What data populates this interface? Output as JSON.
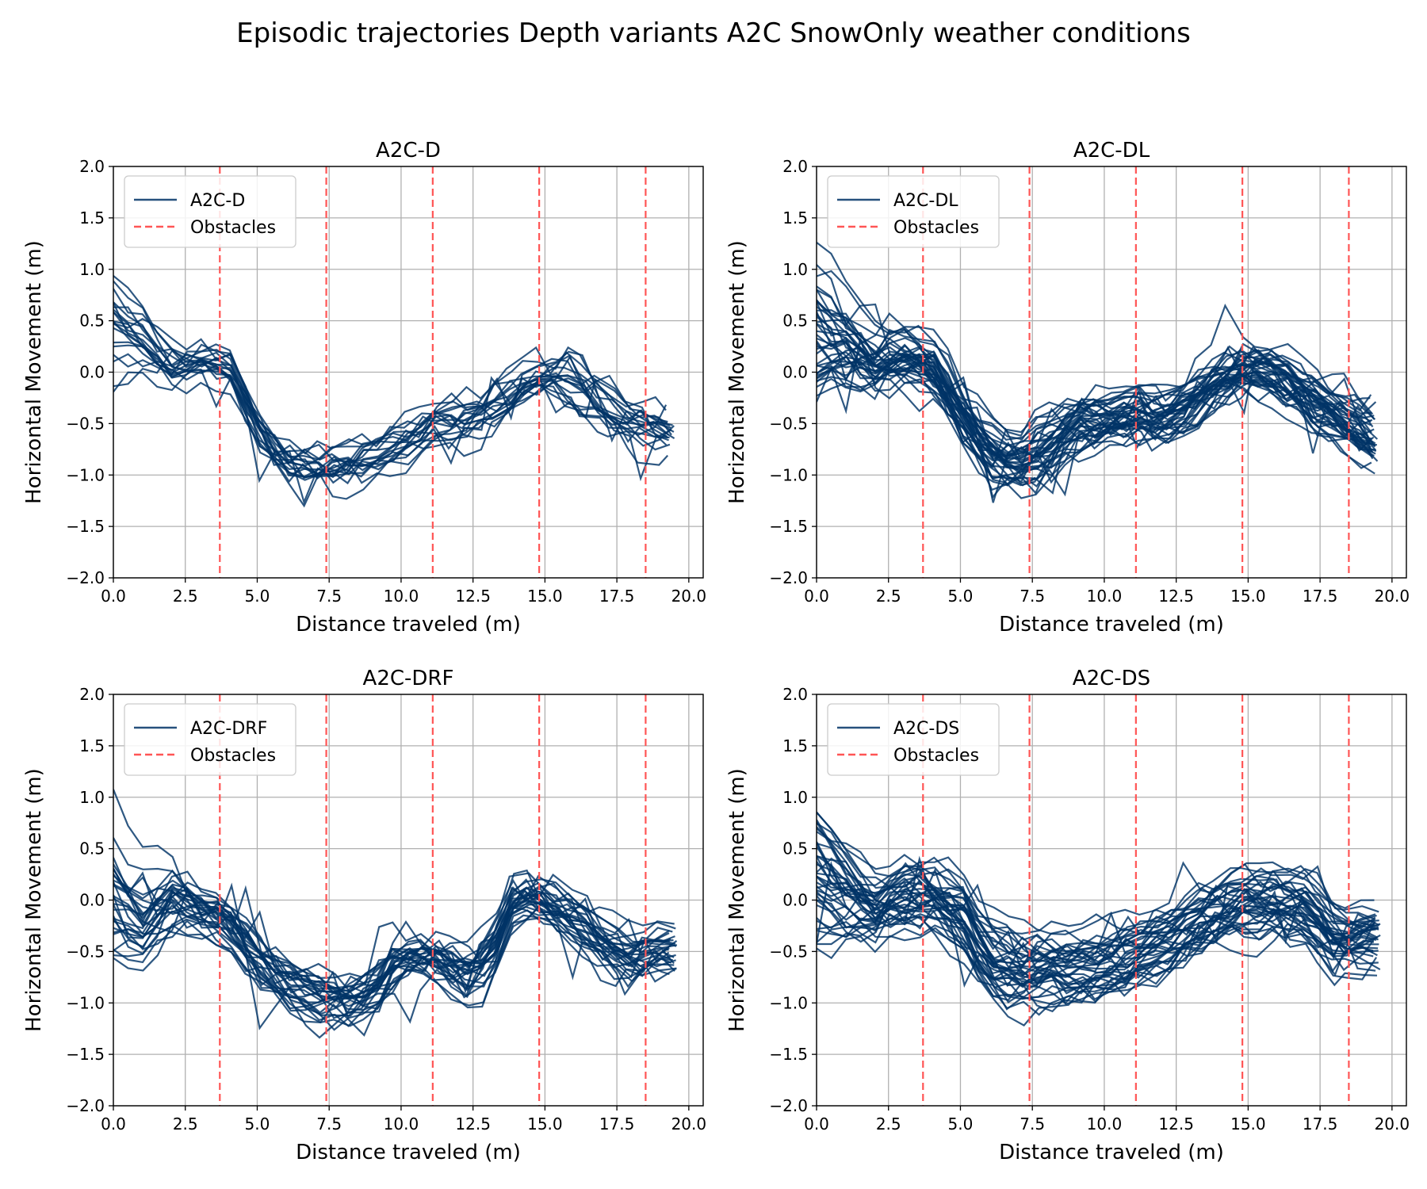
{
  "figure": {
    "title": "Episodic trajectories Depth variants A2C SnowOnly weather conditions"
  },
  "colors": {
    "trajectory": "#003366",
    "obstacle": "#ff5555",
    "grid": "#b0b0b0"
  },
  "chart_data": [
    {
      "type": "line",
      "title": "A2C-D",
      "xlabel": "Distance traveled (m)",
      "ylabel": "Horizontal Movement (m)",
      "xlim": [
        0,
        20.5
      ],
      "ylim": [
        -2,
        2
      ],
      "xticks": [
        "0.0",
        "2.5",
        "5.0",
        "7.5",
        "10.0",
        "12.5",
        "15.0",
        "17.5",
        "20.0"
      ],
      "yticks": [
        "2.0",
        "1.5",
        "1.0",
        "0.5",
        "0.0",
        "−0.5",
        "−1.0",
        "−1.5",
        "−2.0"
      ],
      "grid": true,
      "legend": {
        "placement": "top-left",
        "entries": [
          "A2C-D",
          "Obstacles"
        ]
      },
      "obstacles_x": [
        3.7,
        7.4,
        11.1,
        14.8,
        18.5
      ],
      "x": [
        0,
        1,
        2,
        3,
        4,
        5,
        6,
        7,
        8,
        9,
        10,
        11,
        12,
        13,
        14,
        15,
        16,
        17,
        18,
        19,
        19.5
      ],
      "mean_y": [
        0.25,
        0.2,
        0.0,
        0.05,
        0.05,
        -0.55,
        -0.9,
        -0.95,
        -0.9,
        -0.85,
        -0.7,
        -0.5,
        -0.5,
        -0.4,
        -0.2,
        -0.05,
        -0.1,
        -0.3,
        -0.5,
        -0.6,
        -0.6
      ],
      "num_trajectories": 20
    },
    {
      "type": "line",
      "title": "A2C-DL",
      "xlabel": "Distance traveled (m)",
      "ylabel": "Horizontal Movement (m)",
      "xlim": [
        0,
        20.5
      ],
      "ylim": [
        -2,
        2
      ],
      "xticks": [
        "0.0",
        "2.5",
        "5.0",
        "7.5",
        "10.0",
        "12.5",
        "15.0",
        "17.5",
        "20.0"
      ],
      "yticks": [
        "2.0",
        "1.5",
        "1.0",
        "0.5",
        "0.0",
        "−0.5",
        "−1.0",
        "−1.5",
        "−2.0"
      ],
      "grid": true,
      "legend": {
        "placement": "top-left",
        "entries": [
          "A2C-DL",
          "Obstacles"
        ]
      },
      "obstacles_x": [
        3.7,
        7.4,
        11.1,
        14.8,
        18.5
      ],
      "x": [
        0,
        1,
        2,
        3,
        4,
        5,
        6,
        7,
        8,
        9,
        10,
        11,
        12,
        13,
        14,
        15,
        16,
        17,
        18,
        19,
        19.5
      ],
      "mean_y": [
        0.3,
        0.25,
        0.1,
        0.15,
        0.05,
        -0.45,
        -0.8,
        -0.95,
        -0.8,
        -0.55,
        -0.5,
        -0.4,
        -0.45,
        -0.3,
        -0.05,
        0.05,
        -0.05,
        -0.25,
        -0.4,
        -0.6,
        -0.65
      ],
      "num_trajectories": 40
    },
    {
      "type": "line",
      "title": "A2C-DRF",
      "xlabel": "Distance traveled (m)",
      "ylabel": "Horizontal Movement (m)",
      "xlim": [
        0,
        20.5
      ],
      "ylim": [
        -2,
        2
      ],
      "xticks": [
        "0.0",
        "2.5",
        "5.0",
        "7.5",
        "10.0",
        "12.5",
        "15.0",
        "17.5",
        "20.0"
      ],
      "yticks": [
        "2.0",
        "1.5",
        "1.0",
        "0.5",
        "0.0",
        "−0.5",
        "−1.0",
        "−1.5",
        "−2.0"
      ],
      "grid": true,
      "legend": {
        "placement": "top-left",
        "entries": [
          "A2C-DRF",
          "Obstacles"
        ]
      },
      "obstacles_x": [
        3.7,
        7.4,
        11.1,
        14.8,
        18.5
      ],
      "x": [
        0,
        1,
        2,
        3,
        4,
        5,
        6,
        7,
        8,
        9,
        10,
        11,
        12,
        13,
        14,
        15,
        16,
        17,
        18,
        19,
        19.6
      ],
      "mean_y": [
        0.1,
        -0.2,
        0.0,
        -0.1,
        -0.25,
        -0.6,
        -0.85,
        -0.95,
        -1.05,
        -0.95,
        -0.6,
        -0.6,
        -0.75,
        -0.7,
        0.05,
        -0.05,
        -0.2,
        -0.45,
        -0.6,
        -0.5,
        -0.5
      ],
      "num_trajectories": 30
    },
    {
      "type": "line",
      "title": "A2C-DS",
      "xlabel": "Distance traveled (m)",
      "ylabel": "Horizontal Movement (m)",
      "xlim": [
        0,
        20.5
      ],
      "ylim": [
        -2,
        2
      ],
      "xticks": [
        "0.0",
        "2.5",
        "5.0",
        "7.5",
        "10.0",
        "12.5",
        "15.0",
        "17.5",
        "20.0"
      ],
      "yticks": [
        "2.0",
        "1.5",
        "1.0",
        "0.5",
        "0.0",
        "−0.5",
        "−1.0",
        "−1.5",
        "−2.0"
      ],
      "grid": true,
      "legend": {
        "placement": "top-left",
        "entries": [
          "A2C-DS",
          "Obstacles"
        ]
      },
      "obstacles_x": [
        3.7,
        7.4,
        11.1,
        14.8,
        18.5
      ],
      "x": [
        0,
        1,
        2,
        3,
        4,
        5,
        6,
        7,
        8,
        9,
        10,
        11,
        12,
        13,
        14,
        15,
        16,
        17,
        18,
        19,
        19.6
      ],
      "mean_y": [
        0.2,
        0.05,
        -0.1,
        0.0,
        0.0,
        -0.15,
        -0.65,
        -0.75,
        -0.7,
        -0.7,
        -0.65,
        -0.55,
        -0.45,
        -0.25,
        -0.1,
        -0.05,
        -0.05,
        -0.1,
        -0.4,
        -0.35,
        -0.35
      ],
      "num_trajectories": 40
    }
  ]
}
